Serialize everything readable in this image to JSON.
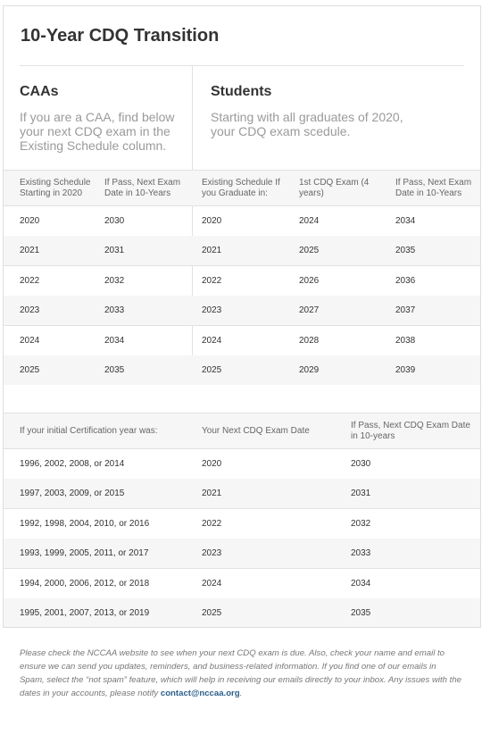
{
  "title": "10-Year CDQ Transition",
  "caas": {
    "heading": "CAAs",
    "description": "If you are a CAA, find below your next CDQ exam in the Existing Schedule column."
  },
  "students": {
    "heading": "Students",
    "description": "Starting with all graduates of 2020, your CDQ exam scedule."
  },
  "table1": {
    "headers": [
      "Existing Schedule Starting in 2020",
      "If Pass, Next Exam Date in 10-Years",
      "Existing Schedule If you Graduate in:",
      "1st CDQ Exam (4 years)",
      "If Pass, Next Exam Date in 10-Years"
    ],
    "rows": [
      [
        "2020",
        "2030",
        "2020",
        "2024",
        "2034"
      ],
      [
        "2021",
        "2031",
        "2021",
        "2025",
        "2035"
      ],
      [
        "2022",
        "2032",
        "2022",
        "2026",
        "2036"
      ],
      [
        "2023",
        "2033",
        "2023",
        "2027",
        "2037"
      ],
      [
        "2024",
        "2034",
        "2024",
        "2028",
        "2038"
      ],
      [
        "2025",
        "2035",
        "2025",
        "2029",
        "2039"
      ]
    ]
  },
  "table2": {
    "headers": [
      "If your initial Certification year was:",
      "Your Next CDQ Exam Date",
      "If Pass, Next CDQ Exam Date in 10-years"
    ],
    "rows": [
      [
        "1996, 2002, 2008, or 2014",
        "2020",
        "2030"
      ],
      [
        "1997, 2003, 2009, or 2015",
        "2021",
        "2031"
      ],
      [
        "1992, 1998, 2004, 2010, or 2016",
        "2022",
        "2032"
      ],
      [
        "1993, 1999, 2005, 2011, or 2017",
        "2023",
        "2033"
      ],
      [
        "1994, 2000, 2006, 2012, or 2018",
        "2024",
        "2034"
      ],
      [
        "1995, 2001, 2007, 2013, or 2019",
        "2025",
        "2035"
      ]
    ]
  },
  "footer": {
    "text": "Please check the NCCAA website to see when your next CDQ exam is due. Also, check your name and email to ensure we can send you updates, reminders, and business-related information. If you find one of our emails in Spam, select the “not spam” feature, which will help in receiving our emails directly to your inbox. Any issues with the dates in your accounts, please notify ",
    "email": "contact@nccaa.org",
    "end": "."
  },
  "colors": {
    "accent_link": "#2b5f8a",
    "muted_text": "#9a9a9a",
    "row_alt": "#f6f6f6"
  }
}
